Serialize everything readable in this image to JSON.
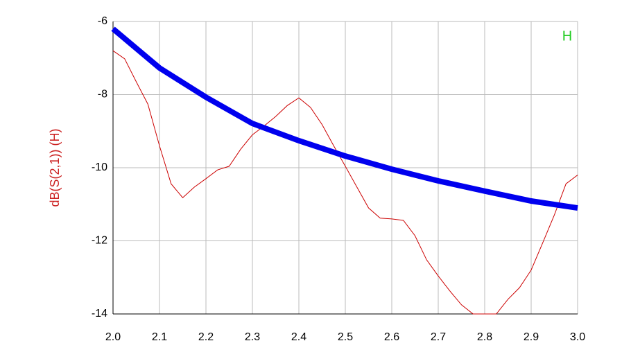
{
  "chart_data": {
    "type": "line",
    "y_label": "dB(S(2,1))  (H)",
    "legend_label": "H",
    "xlim": [
      2.0,
      3.0
    ],
    "xticks": [
      {
        "value": 2.0,
        "label": "2.0"
      },
      2.1,
      2.2,
      2.3,
      2.4,
      2.5,
      2.6,
      2.7,
      2.8,
      2.9,
      {
        "value": 3.0,
        "label": "3.0"
      }
    ],
    "ylim": [
      -14,
      -6
    ],
    "yticks": [
      -14,
      -12,
      -10,
      -8,
      -6
    ],
    "grid": true,
    "series": [
      {
        "color": "#cc0000",
        "x": [
          2.0,
          2.025,
          2.05,
          2.075,
          2.1,
          2.125,
          2.15,
          2.175,
          2.2,
          2.225,
          2.25,
          2.275,
          2.3,
          2.325,
          2.35,
          2.375,
          2.4,
          2.425,
          2.45,
          2.475,
          2.5,
          2.525,
          2.55,
          2.575,
          2.6,
          2.625,
          2.65,
          2.675,
          2.7,
          2.725,
          2.75,
          2.775,
          2.8,
          2.825,
          2.85,
          2.875,
          2.9,
          2.925,
          2.95,
          2.975,
          3.0
        ],
        "values": [
          -6.8,
          -7.02,
          -7.65,
          -8.26,
          -9.4,
          -10.44,
          -10.82,
          -10.53,
          -10.3,
          -10.06,
          -9.96,
          -9.49,
          -9.1,
          -8.86,
          -8.6,
          -8.3,
          -8.09,
          -8.35,
          -8.82,
          -9.4,
          -9.96,
          -10.53,
          -11.1,
          -11.38,
          -11.4,
          -11.44,
          -11.86,
          -12.52,
          -12.96,
          -13.37,
          -13.75,
          -14,
          -14,
          -14,
          -13.6,
          -13.28,
          -12.8,
          -12.05,
          -11.29,
          -10.44,
          -10.2
        ]
      },
      {
        "color": "#0000ee",
        "x": [
          2.0,
          2.1,
          2.2,
          2.3,
          2.4,
          2.5,
          2.6,
          2.7,
          2.8,
          2.9,
          3.0
        ],
        "values": [
          -6.2,
          -7.27,
          -8.07,
          -8.79,
          -9.26,
          -9.68,
          -10.04,
          -10.36,
          -10.64,
          -10.91,
          -11.1
        ]
      }
    ]
  }
}
